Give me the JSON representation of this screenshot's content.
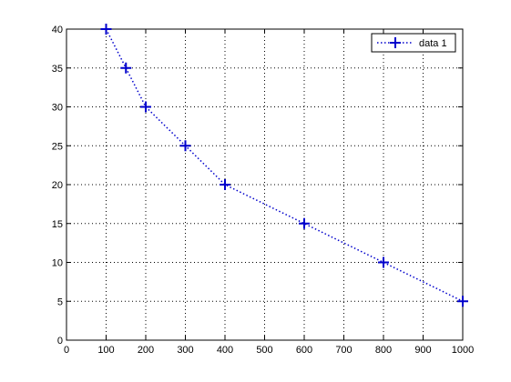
{
  "chart_data": {
    "type": "line",
    "x": [
      100,
      150,
      200,
      300,
      400,
      600,
      800,
      1000
    ],
    "series": [
      {
        "name": "data 1",
        "color": "#0000cc",
        "values": [
          40,
          35,
          30,
          25,
          20,
          15,
          10,
          5
        ]
      }
    ],
    "xlim": [
      0,
      1000
    ],
    "xticks": [
      0,
      100,
      200,
      300,
      400,
      500,
      600,
      700,
      800,
      900,
      1000
    ],
    "ylim": [
      0,
      40
    ],
    "yticks": [
      0,
      5,
      10,
      15,
      20,
      25,
      30,
      35,
      40
    ],
    "grid": true,
    "legend": "northeast"
  }
}
